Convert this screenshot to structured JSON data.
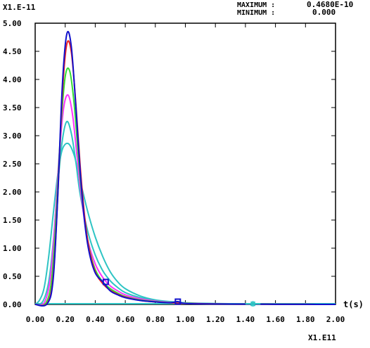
{
  "chart_data": {
    "type": "line",
    "title": "",
    "xlabel": "t(s)",
    "ylabel": "",
    "x_multiplier": "X1.E11",
    "y_multiplier": "X1.E-11",
    "max_label": "MAXIMUM :",
    "max_value": "0.4680E-10",
    "min_label": "MINIMUM :",
    "min_value": "0.000",
    "xlim": [
      0,
      2.0
    ],
    "ylim": [
      0,
      5.0
    ],
    "xticks": [
      "0.00",
      "0.20",
      "0.40",
      "0.60",
      "0.80",
      "1.00",
      "1.20",
      "1.40",
      "1.60",
      "1.80",
      "2.00"
    ],
    "yticks": [
      "0.00",
      "0.50",
      "1.00",
      "1.50",
      "2.00",
      "2.50",
      "3.00",
      "3.50",
      "4.00",
      "4.50",
      "5.00"
    ],
    "grid": false,
    "series": [
      {
        "color": "#2ec4c4",
        "marker": "none",
        "x": [
          0,
          0.03,
          0.06,
          0.09,
          0.12,
          0.15,
          0.18,
          0.22,
          0.26,
          0.3,
          0.35,
          0.4,
          0.45,
          0.5,
          0.55,
          0.6,
          0.7,
          0.8,
          0.9,
          1.0,
          1.2,
          1.4,
          1.6,
          1.8,
          2.0
        ],
        "y": [
          0,
          0.08,
          0.3,
          0.85,
          1.6,
          2.3,
          2.75,
          2.86,
          2.65,
          2.2,
          1.65,
          1.2,
          0.85,
          0.58,
          0.4,
          0.28,
          0.15,
          0.08,
          0.05,
          0.03,
          0.015,
          0.008,
          0.004,
          0.002,
          0
        ]
      },
      {
        "color": "#2ec4c4",
        "marker": "none",
        "x": [
          0,
          0.05,
          0.09,
          0.12,
          0.15,
          0.18,
          0.21,
          0.24,
          0.27,
          0.3,
          0.35,
          0.4,
          0.45,
          0.5,
          0.55,
          0.6,
          0.7,
          0.8,
          0.9,
          1.0,
          1.2,
          1.4,
          1.6,
          1.8,
          2.0
        ],
        "y": [
          0,
          0.05,
          0.4,
          1.1,
          2.1,
          2.9,
          3.25,
          3.05,
          2.55,
          1.95,
          1.3,
          0.88,
          0.6,
          0.42,
          0.3,
          0.21,
          0.12,
          0.07,
          0.04,
          0.025,
          0.012,
          0.006,
          0.003,
          0.001,
          0
        ]
      },
      {
        "color": "#ff33ff",
        "marker": "none",
        "x": [
          0,
          0.06,
          0.1,
          0.13,
          0.16,
          0.19,
          0.22,
          0.25,
          0.28,
          0.31,
          0.35,
          0.4,
          0.45,
          0.5,
          0.55,
          0.6,
          0.7,
          0.8,
          0.9,
          1.0,
          1.2,
          1.4,
          1.6,
          1.8,
          2.0
        ],
        "y": [
          0,
          0.03,
          0.45,
          1.4,
          2.65,
          3.5,
          3.72,
          3.35,
          2.6,
          1.85,
          1.15,
          0.72,
          0.48,
          0.33,
          0.24,
          0.17,
          0.1,
          0.06,
          0.035,
          0.02,
          0.01,
          0.005,
          0.002,
          0.001,
          0
        ]
      },
      {
        "color": "#33dd33",
        "marker": "none",
        "x": [
          0,
          0.07,
          0.11,
          0.14,
          0.17,
          0.2,
          0.23,
          0.26,
          0.29,
          0.32,
          0.36,
          0.4,
          0.45,
          0.5,
          0.55,
          0.6,
          0.7,
          0.8,
          0.9,
          1.0,
          1.2,
          1.4,
          1.6,
          1.8,
          2.0
        ],
        "y": [
          0,
          0.02,
          0.45,
          1.6,
          3.1,
          4.05,
          4.15,
          3.55,
          2.55,
          1.7,
          1.0,
          0.62,
          0.4,
          0.28,
          0.2,
          0.14,
          0.08,
          0.05,
          0.03,
          0.018,
          0.009,
          0.004,
          0.002,
          0.001,
          0
        ]
      },
      {
        "color": "#ee2222",
        "marker": "none",
        "x": [
          0,
          0.08,
          0.12,
          0.15,
          0.18,
          0.21,
          0.24,
          0.27,
          0.3,
          0.33,
          0.36,
          0.4,
          0.45,
          0.5,
          0.55,
          0.6,
          0.7,
          0.8,
          0.9,
          1.0,
          1.2,
          1.4,
          1.6,
          1.8,
          2.0
        ],
        "y": [
          0,
          0.02,
          0.5,
          1.9,
          3.7,
          4.62,
          4.5,
          3.6,
          2.45,
          1.55,
          0.98,
          0.58,
          0.37,
          0.25,
          0.18,
          0.13,
          0.07,
          0.045,
          0.028,
          0.016,
          0.008,
          0.004,
          0.002,
          0.001,
          0
        ]
      },
      {
        "color": "#1111cc",
        "marker": "square",
        "x": [
          0,
          0.08,
          0.12,
          0.15,
          0.18,
          0.21,
          0.24,
          0.27,
          0.3,
          0.33,
          0.36,
          0.4,
          0.45,
          0.5,
          0.55,
          0.6,
          0.7,
          0.8,
          0.9,
          0.95,
          1.0,
          1.2,
          1.4,
          1.6,
          1.8,
          2.0
        ],
        "y": [
          0,
          0.01,
          0.45,
          1.9,
          3.85,
          4.8,
          4.6,
          3.55,
          2.35,
          1.45,
          0.92,
          0.56,
          0.4,
          0.24,
          0.17,
          0.12,
          0.07,
          0.045,
          0.03,
          0.05,
          0.016,
          0.008,
          0.004,
          0.002,
          0.001,
          0
        ],
        "marker_points": [
          [
            0.47,
            0.4
          ],
          [
            0.95,
            0.05
          ]
        ]
      },
      {
        "color": "#2ec4c4",
        "marker": "star",
        "x": [
          1.4,
          1.45,
          1.5
        ],
        "y": [
          0.01,
          0.01,
          0.01
        ],
        "marker_points": [
          [
            1.45,
            0.01
          ]
        ]
      }
    ]
  }
}
